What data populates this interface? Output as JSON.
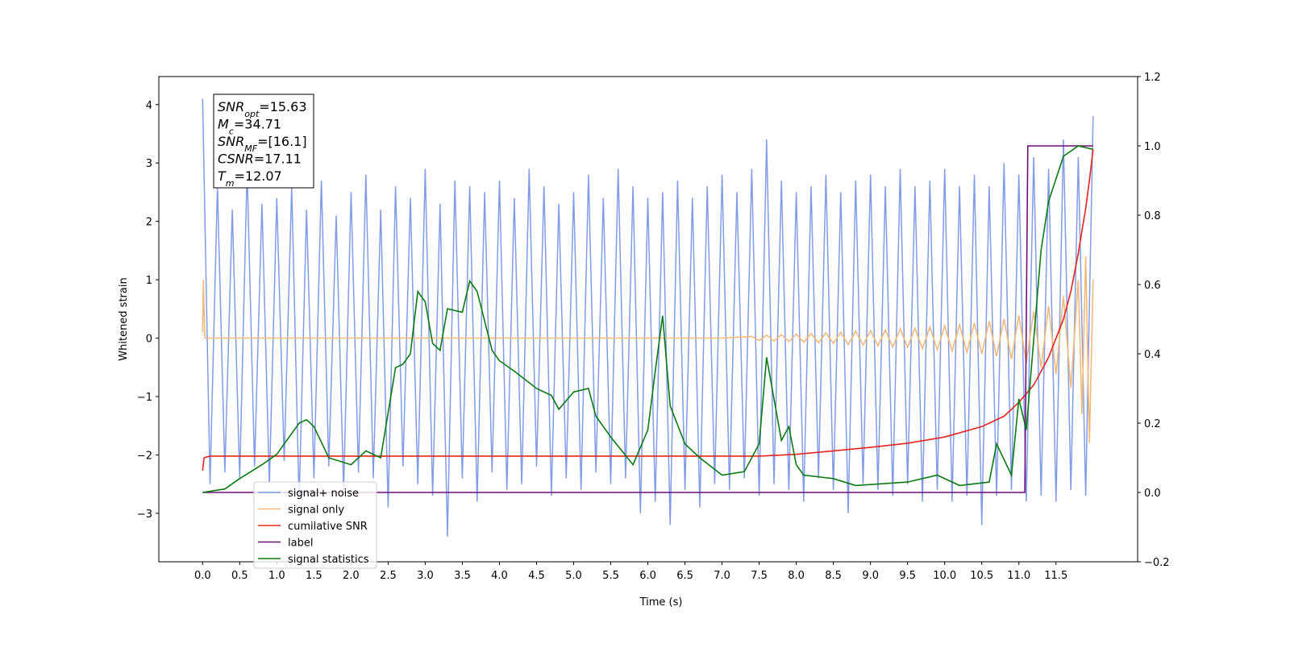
{
  "chart_data": {
    "type": "line",
    "xlabel": "Time (s)",
    "ylabel": "Whitened strain",
    "xlim": [
      -0.59,
      12.6
    ],
    "ylim": [
      -3.83,
      4.48
    ],
    "y2lim": [
      -0.2,
      1.2
    ],
    "xticks": [
      {
        "value": 0,
        "label": "0.0"
      },
      {
        "value": 0.5,
        "label": "0.5"
      },
      {
        "value": 1,
        "label": "1.0"
      },
      {
        "value": 1.5,
        "label": "1.5"
      },
      {
        "value": 2,
        "label": "2.0"
      },
      {
        "value": 2.5,
        "label": "2.5"
      },
      {
        "value": 3,
        "label": "3.0"
      },
      {
        "value": 3.5,
        "label": "3.5"
      },
      {
        "value": 4,
        "label": "4.0"
      },
      {
        "value": 4.5,
        "label": "4.5"
      },
      {
        "value": 5,
        "label": "5.0"
      },
      {
        "value": 5.5,
        "label": "5.5"
      },
      {
        "value": 6,
        "label": "6.0"
      },
      {
        "value": 6.5,
        "label": "6.5"
      },
      {
        "value": 7,
        "label": "7.0"
      },
      {
        "value": 7.5,
        "label": "7.5"
      },
      {
        "value": 8,
        "label": "8.0"
      },
      {
        "value": 8.5,
        "label": "8.5"
      },
      {
        "value": 9,
        "label": "9.0"
      },
      {
        "value": 9.5,
        "label": "9.5"
      },
      {
        "value": 10,
        "label": "10.0"
      },
      {
        "value": 10.5,
        "label": "10.5"
      },
      {
        "value": 11,
        "label": "11.0"
      },
      {
        "value": 11.5,
        "label": "11.5"
      }
    ],
    "yticks": [
      {
        "value": -3,
        "label": "−3"
      },
      {
        "value": -2,
        "label": "−2"
      },
      {
        "value": -1,
        "label": "−1"
      },
      0,
      1,
      2,
      3,
      4
    ],
    "y2ticks": [
      {
        "value": -0.2,
        "label": "−0.2"
      },
      {
        "value": 0,
        "label": "0.0"
      },
      {
        "value": 0.2,
        "label": "0.2"
      },
      {
        "value": 0.4,
        "label": "0.4"
      },
      {
        "value": 0.6,
        "label": "0.6"
      },
      {
        "value": 0.8,
        "label": "0.8"
      },
      {
        "value": 1,
        "label": "1.0"
      },
      {
        "value": 1.2,
        "label": "1.2"
      }
    ],
    "annotation": [
      {
        "main": "SNR",
        "sub": "opt",
        "rest": "=15.63"
      },
      {
        "main": "M",
        "sub": "c",
        "rest": "=34.71"
      },
      {
        "main": "SNR",
        "sub": "MF",
        "rest": "=[16.1]"
      },
      {
        "main": "CSNR",
        "sub": "",
        "rest": "=17.11"
      },
      {
        "main": "T",
        "sub": "m",
        "rest": "=12.07"
      }
    ],
    "legend": "lower left",
    "series": [
      {
        "name": "signal+ noise",
        "color": "#7b96e6",
        "axis": "y",
        "x": [
          0,
          0.1,
          0.2,
          0.3,
          0.4,
          0.5,
          0.6,
          0.7,
          0.8,
          0.9,
          1,
          1.1,
          1.2,
          1.3,
          1.4,
          1.5,
          1.6,
          1.7,
          1.8,
          1.9,
          2,
          2.1,
          2.2,
          2.3,
          2.4,
          2.5,
          2.6,
          2.7,
          2.8,
          2.9,
          3,
          3.1,
          3.2,
          3.3,
          3.4,
          3.5,
          3.6,
          3.7,
          3.8,
          3.9,
          4,
          4.1,
          4.2,
          4.3,
          4.4,
          4.5,
          4.6,
          4.7,
          4.8,
          4.9,
          5,
          5.1,
          5.2,
          5.3,
          5.4,
          5.5,
          5.6,
          5.7,
          5.8,
          5.9,
          6,
          6.1,
          6.2,
          6.3,
          6.4,
          6.5,
          6.6,
          6.7,
          6.8,
          6.9,
          7,
          7.1,
          7.2,
          7.3,
          7.4,
          7.5,
          7.6,
          7.7,
          7.8,
          7.9,
          8,
          8.1,
          8.2,
          8.3,
          8.4,
          8.5,
          8.6,
          8.7,
          8.8,
          8.9,
          9,
          9.1,
          9.2,
          9.3,
          9.4,
          9.5,
          9.6,
          9.7,
          9.8,
          9.9,
          10,
          10.1,
          10.2,
          10.3,
          10.4,
          10.5,
          10.6,
          10.7,
          10.8,
          10.9,
          11,
          11.1,
          11.2,
          11.3,
          11.4,
          11.5,
          11.6,
          11.7,
          11.8,
          11.9,
          12
        ],
        "values": [
          4.1,
          -2.5,
          2.6,
          -2.3,
          2.2,
          -2.4,
          2.9,
          -2.2,
          2.3,
          -2.5,
          2.4,
          -2.1,
          2.6,
          -2.8,
          2.2,
          -2.4,
          2.7,
          -2.2,
          2.1,
          -2.6,
          2.5,
          -2.3,
          2.8,
          -2.4,
          2.2,
          -2.9,
          2.6,
          -2.2,
          2.4,
          -2.5,
          2.9,
          -2.7,
          2.3,
          -3.4,
          2.7,
          -2.4,
          2.6,
          -2.8,
          2.5,
          -2.3,
          2.7,
          -2.6,
          2.4,
          -2.5,
          2.9,
          -2.2,
          2.6,
          -2.7,
          2.3,
          -2.4,
          2.5,
          -2.6,
          2.8,
          -2.3,
          2.4,
          -2.5,
          2.9,
          -2.4,
          2.6,
          -3.0,
          2.4,
          -2.8,
          2.5,
          -3.2,
          2.7,
          -2.6,
          2.4,
          -2.9,
          2.6,
          -2.5,
          2.8,
          -2.6,
          2.5,
          -2.4,
          2.9,
          -2.7,
          3.4,
          -2.5,
          2.7,
          -2.6,
          2.5,
          -2.8,
          2.6,
          -2.4,
          2.8,
          -2.6,
          2.5,
          -3.0,
          2.7,
          -2.5,
          2.8,
          -2.6,
          2.6,
          -2.7,
          2.9,
          -2.5,
          2.6,
          -2.8,
          2.7,
          -2.6,
          2.9,
          -2.8,
          2.6,
          -2.7,
          2.8,
          -3.2,
          2.6,
          -2.7,
          3.0,
          -2.6,
          2.8,
          -2.8,
          3.1,
          -2.7,
          2.9,
          -2.8,
          3.4,
          -2.6,
          3.1,
          -2.7,
          3.8
        ]
      },
      {
        "name": "signal only",
        "color": "#f2b979",
        "axis": "y",
        "x": [
          0,
          0.01,
          0.03,
          7,
          7.4,
          7.5,
          7.6,
          7.7,
          7.8,
          7.9,
          8,
          8.1,
          8.2,
          8.3,
          8.4,
          8.5,
          8.6,
          8.7,
          8.8,
          8.9,
          9,
          9.1,
          9.2,
          9.3,
          9.4,
          9.5,
          9.6,
          9.7,
          9.8,
          9.9,
          10,
          10.1,
          10.2,
          10.3,
          10.4,
          10.5,
          10.6,
          10.7,
          10.8,
          10.9,
          11,
          11.1,
          11.2,
          11.3,
          11.4,
          11.5,
          11.6,
          11.7,
          11.8,
          11.85,
          11.9,
          11.95,
          12
        ],
        "values": [
          0.1,
          1.0,
          0,
          0,
          0.03,
          -0.04,
          0.05,
          -0.05,
          0.06,
          -0.06,
          0.07,
          -0.07,
          0.08,
          -0.08,
          0.09,
          -0.09,
          0.1,
          -0.11,
          0.12,
          -0.12,
          0.13,
          -0.13,
          0.14,
          -0.15,
          0.16,
          -0.16,
          0.17,
          -0.18,
          0.19,
          -0.2,
          0.21,
          -0.22,
          0.23,
          -0.24,
          0.26,
          -0.27,
          0.29,
          -0.31,
          0.33,
          -0.36,
          0.39,
          -0.42,
          0.46,
          -0.5,
          0.55,
          -0.62,
          0.72,
          -0.85,
          1.0,
          -1.3,
          1.4,
          -1.8,
          1.0
        ]
      },
      {
        "name": "cumilative SNR",
        "color": "#e8241c",
        "axis": "y2",
        "x": [
          0,
          0.02,
          0.1,
          7.5,
          8,
          8.5,
          9,
          9.5,
          10,
          10.5,
          10.8,
          11,
          11.2,
          11.4,
          11.6,
          11.7,
          11.8,
          11.9,
          11.95,
          12
        ],
        "values": [
          0.063,
          0.1,
          0.105,
          0.105,
          0.11,
          0.12,
          0.13,
          0.142,
          0.16,
          0.19,
          0.22,
          0.26,
          0.31,
          0.39,
          0.5,
          0.58,
          0.69,
          0.82,
          0.9,
          0.99
        ]
      },
      {
        "name": "label",
        "color": "#6d0f7a",
        "axis": "y2",
        "x": [
          0,
          11.08,
          11.12,
          12
        ],
        "values": [
          0,
          0,
          1,
          1
        ]
      },
      {
        "name": "signal statistics",
        "color": "#0a7a12",
        "axis": "y2",
        "x": [
          0,
          0.3,
          0.5,
          0.8,
          1,
          1.1,
          1.3,
          1.4,
          1.5,
          1.7,
          2,
          2.2,
          2.4,
          2.6,
          2.7,
          2.8,
          2.9,
          3,
          3.1,
          3.2,
          3.3,
          3.5,
          3.6,
          3.7,
          3.9,
          4,
          4.2,
          4.5,
          4.7,
          4.8,
          5,
          5.2,
          5.3,
          5.5,
          5.8,
          6,
          6.1,
          6.2,
          6.3,
          6.5,
          6.7,
          7,
          7.3,
          7.5,
          7.6,
          7.8,
          7.9,
          8,
          8.1,
          8.5,
          8.8,
          9.5,
          9.9,
          10.2,
          10.6,
          10.7,
          10.9,
          11,
          11.1,
          11.3,
          11.4,
          11.6,
          11.8,
          12
        ],
        "values": [
          0,
          0.01,
          0.04,
          0.08,
          0.11,
          0.14,
          0.2,
          0.21,
          0.19,
          0.1,
          0.08,
          0.12,
          0.1,
          0.36,
          0.37,
          0.4,
          0.58,
          0.55,
          0.43,
          0.41,
          0.53,
          0.52,
          0.61,
          0.58,
          0.41,
          0.38,
          0.35,
          0.3,
          0.28,
          0.24,
          0.29,
          0.3,
          0.22,
          0.16,
          0.08,
          0.18,
          0.35,
          0.51,
          0.25,
          0.14,
          0.1,
          0.05,
          0.06,
          0.14,
          0.39,
          0.15,
          0.19,
          0.08,
          0.05,
          0.04,
          0.02,
          0.03,
          0.05,
          0.02,
          0.03,
          0.14,
          0.05,
          0.27,
          0.18,
          0.7,
          0.84,
          0.97,
          1.0,
          0.99
        ]
      }
    ]
  }
}
